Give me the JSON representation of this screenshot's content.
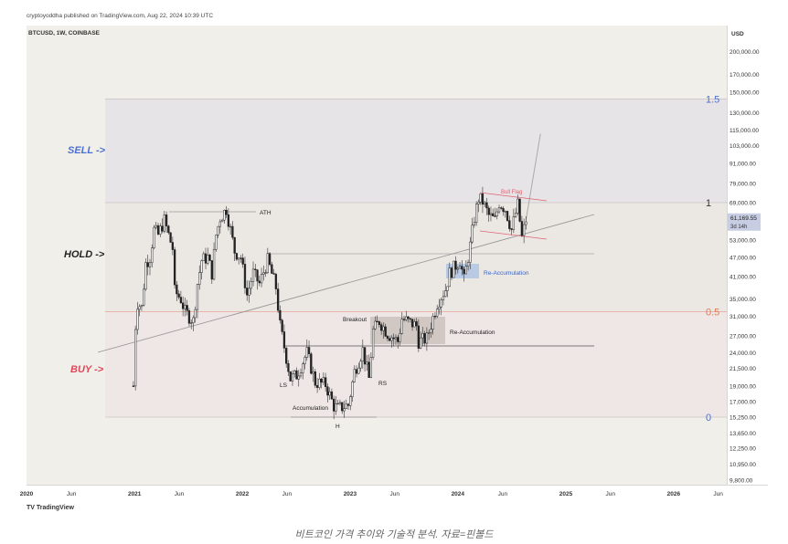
{
  "header": {
    "publisher": "cryptoyoddha published on TradingView.com, Aug 22, 2024 10:39 UTC"
  },
  "chart_title": "BTCUSD, 1W, COINBASE",
  "currency": "USD",
  "current_price": {
    "value": "61,169.55",
    "countdown": "3d 14h",
    "price": 61169.55
  },
  "fib_levels": [
    {
      "label": "1.5",
      "price": 143000
    },
    {
      "label": "1",
      "price": 69000
    },
    {
      "label": "0.5",
      "price": 32000
    },
    {
      "label": "0",
      "price": 15250
    }
  ],
  "zones": {
    "sell": "SELL ->",
    "hold": "HOLD ->",
    "buy": "BUY ->"
  },
  "annotations": {
    "ath": "ATH",
    "ls": "LS",
    "rs": "RS",
    "h": "H",
    "accumulation": "Accumulation",
    "breakout": "Breakout",
    "re_accumulation_1": "Re-Accumulation",
    "re_accumulation_2": "Re-Accumulation",
    "bull_flag": "Bull Flag"
  },
  "colors": {
    "sell": "#4a6fd4",
    "buy": "#e0455a",
    "fib": "#4a6fd4",
    "fib_mid": "#e07a55",
    "up": "#222222",
    "down": "#222222"
  },
  "chart_data": {
    "type": "candlestick",
    "symbol": "BTCUSD",
    "interval": "1W",
    "y_scale": "log",
    "ylim": [
      9000,
      250000
    ],
    "xlim": [
      "2020-01-01",
      "2026-06-30"
    ],
    "y_ticks": [
      "200,000.00",
      "170,000.00",
      "150,000.00",
      "130,000.00",
      "115,000.00",
      "103,000.00",
      "91,000.00",
      "79,000.00",
      "69,000.00",
      "53,000.00",
      "47,000.00",
      "41,000.00",
      "35,000.00",
      "31,000.00",
      "27,000.00",
      "24,000.00",
      "21,500.00",
      "19,000.00",
      "17,000.00",
      "15,250.00",
      "13,650.00",
      "12,250.00",
      "10,950.00",
      "9,800.00"
    ],
    "x_ticks": [
      {
        "label": "2020",
        "date": "2020-01-01"
      },
      {
        "label": "Jun",
        "date": "2020-06-01"
      },
      {
        "label": "2021",
        "date": "2021-01-01"
      },
      {
        "label": "Jun",
        "date": "2021-06-01"
      },
      {
        "label": "2022",
        "date": "2022-01-01"
      },
      {
        "label": "Jun",
        "date": "2022-06-01"
      },
      {
        "label": "2023",
        "date": "2023-01-01"
      },
      {
        "label": "Jun",
        "date": "2023-06-01"
      },
      {
        "label": "2024",
        "date": "2024-01-01"
      },
      {
        "label": "Jun",
        "date": "2024-06-01"
      },
      {
        "label": "2025",
        "date": "2025-01-01"
      },
      {
        "label": "Jun",
        "date": "2025-06-01"
      },
      {
        "label": "2026",
        "date": "2026-01-01"
      },
      {
        "label": "Jun",
        "date": "2026-06-01"
      }
    ],
    "price_path": [
      [
        "2020-12-28",
        19000
      ],
      [
        "2021-01-04",
        29000
      ],
      [
        "2021-01-11",
        34000
      ],
      [
        "2021-01-25",
        33000
      ],
      [
        "2021-02-08",
        45000
      ],
      [
        "2021-02-22",
        47000
      ],
      [
        "2021-03-08",
        57000
      ],
      [
        "2021-03-22",
        55000
      ],
      [
        "2021-04-12",
        61000
      ],
      [
        "2021-04-26",
        55000
      ],
      [
        "2021-05-10",
        50000
      ],
      [
        "2021-05-17",
        37000
      ],
      [
        "2021-06-07",
        35000
      ],
      [
        "2021-06-21",
        32000
      ],
      [
        "2021-07-19",
        30000
      ],
      [
        "2021-08-02",
        39000
      ],
      [
        "2021-08-16",
        46000
      ],
      [
        "2021-09-06",
        47000
      ],
      [
        "2021-09-20",
        42000
      ],
      [
        "2021-10-04",
        55000
      ],
      [
        "2021-10-18",
        62000
      ],
      [
        "2021-11-08",
        66000
      ],
      [
        "2021-11-22",
        57000
      ],
      [
        "2021-12-06",
        49000
      ],
      [
        "2021-12-27",
        47000
      ],
      [
        "2022-01-17",
        36000
      ],
      [
        "2022-02-07",
        42000
      ],
      [
        "2022-02-28",
        39000
      ],
      [
        "2022-03-28",
        46000
      ],
      [
        "2022-04-25",
        38000
      ],
      [
        "2022-05-09",
        29000
      ],
      [
        "2022-06-13",
        20000
      ],
      [
        "2022-07-04",
        20500
      ],
      [
        "2022-08-08",
        24000
      ],
      [
        "2022-09-05",
        19500
      ],
      [
        "2022-10-10",
        19200
      ],
      [
        "2022-11-07",
        16500
      ],
      [
        "2022-11-21",
        16200
      ],
      [
        "2022-12-26",
        16600
      ],
      [
        "2023-01-16",
        21000
      ],
      [
        "2023-02-13",
        24500
      ],
      [
        "2023-03-06",
        20000
      ],
      [
        "2023-03-20",
        28000
      ],
      [
        "2023-04-10",
        30000
      ],
      [
        "2023-05-08",
        27500
      ],
      [
        "2023-06-12",
        26000
      ],
      [
        "2023-06-26",
        30500
      ],
      [
        "2023-08-14",
        29000
      ],
      [
        "2023-08-21",
        26000
      ],
      [
        "2023-09-18",
        26500
      ],
      [
        "2023-10-23",
        34000
      ],
      [
        "2023-11-20",
        37500
      ],
      [
        "2023-12-04",
        42000
      ],
      [
        "2024-01-08",
        46000
      ],
      [
        "2024-01-22",
        40000
      ],
      [
        "2024-02-12",
        51000
      ],
      [
        "2024-02-26",
        62000
      ],
      [
        "2024-03-11",
        71000
      ],
      [
        "2024-03-25",
        69500
      ],
      [
        "2024-04-15",
        63000
      ],
      [
        "2024-05-06",
        61000
      ],
      [
        "2024-05-20",
        69000
      ],
      [
        "2024-06-10",
        66000
      ],
      [
        "2024-07-01",
        57000
      ],
      [
        "2024-07-22",
        68000
      ],
      [
        "2024-08-05",
        54000
      ],
      [
        "2024-08-19",
        61169.55
      ]
    ],
    "projection": [
      [
        "2024-08-19",
        61169.55
      ],
      [
        "2024-10-07",
        112000
      ]
    ]
  }
}
